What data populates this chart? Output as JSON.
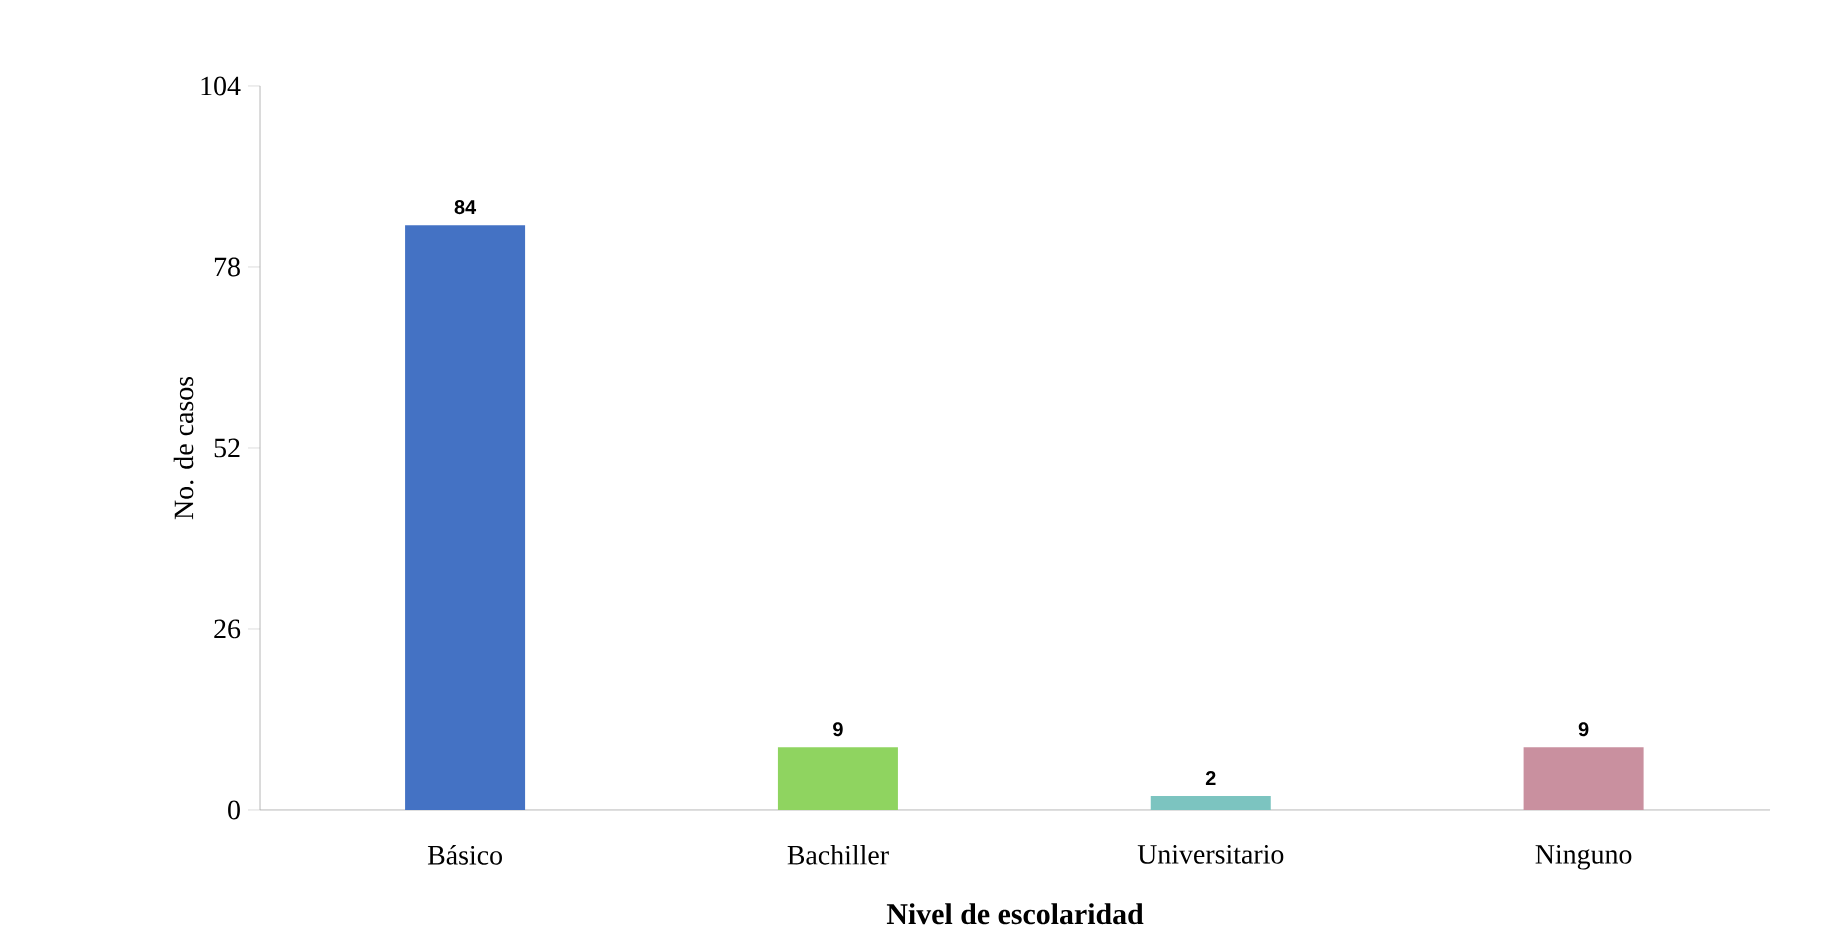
{
  "chart_data": {
    "type": "bar",
    "xlabel": "Nivel de escolaridad",
    "ylabel": "No. de casos",
    "categories": [
      "Básico",
      "Bachiller",
      "Universitario",
      "Ninguno"
    ],
    "values": [
      84,
      9,
      2,
      9
    ],
    "colors": [
      "#4472c4",
      "#8fd460",
      "#7cc4c0",
      "#c9909f"
    ],
    "ylim": [
      0,
      104
    ],
    "yticks": [
      0,
      26,
      52,
      78,
      104
    ],
    "data_labels": true,
    "grid": false
  }
}
